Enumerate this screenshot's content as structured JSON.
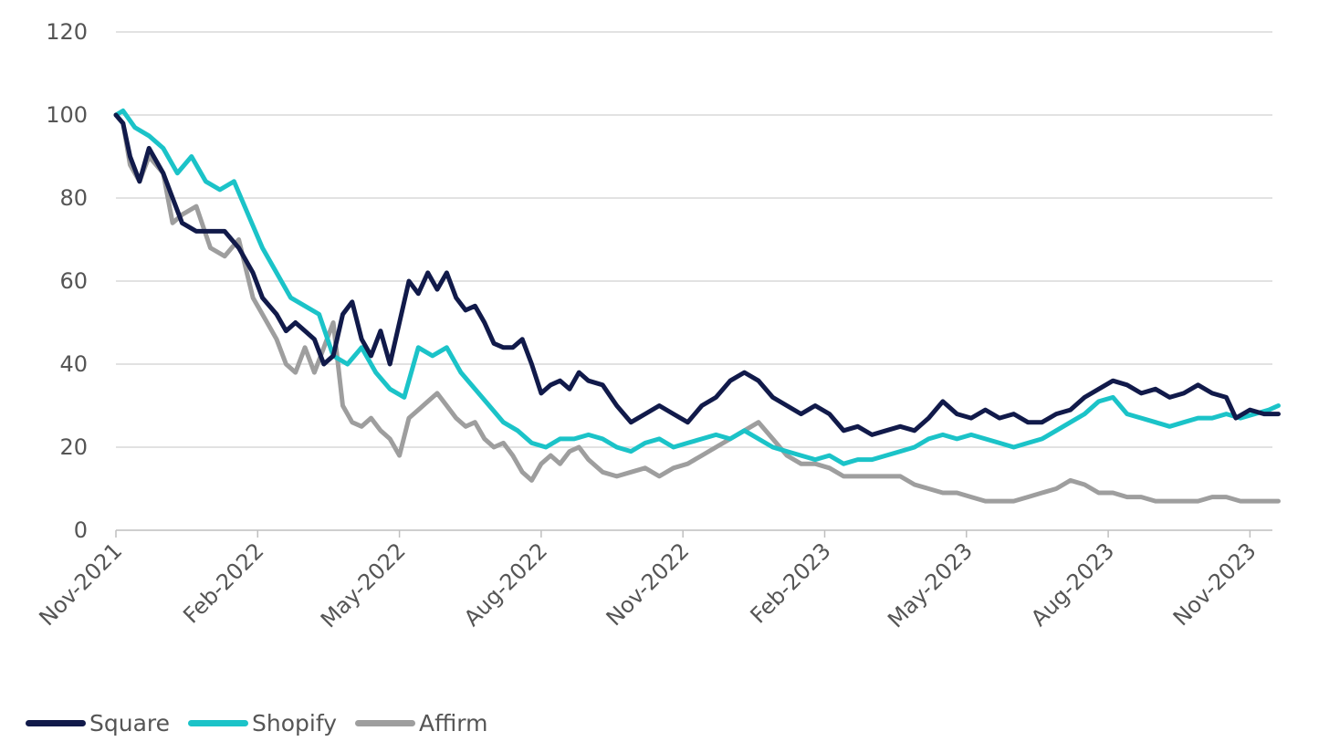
{
  "chart_data": {
    "type": "line",
    "title": "",
    "xlabel": "",
    "ylabel": "",
    "ylim": [
      0,
      120
    ],
    "yticks": [
      0,
      20,
      40,
      60,
      80,
      100,
      120
    ],
    "grid": true,
    "legend_position": "bottom-left",
    "x_tick_labels": [
      "Nov-2021",
      "Feb-2022",
      "May-2022",
      "Aug-2022",
      "Nov-2022",
      "Feb-2023",
      "May-2023",
      "Aug-2023",
      "Nov-2023"
    ],
    "x_domain_months": [
      0,
      24.6
    ],
    "series": [
      {
        "name": "Square",
        "color": "#111a4a",
        "points": [
          [
            0,
            100
          ],
          [
            0.15,
            98
          ],
          [
            0.3,
            90
          ],
          [
            0.5,
            84
          ],
          [
            0.7,
            92
          ],
          [
            1.0,
            86
          ],
          [
            1.2,
            80
          ],
          [
            1.4,
            74
          ],
          [
            1.7,
            72
          ],
          [
            2.0,
            72
          ],
          [
            2.3,
            72
          ],
          [
            2.6,
            68
          ],
          [
            2.9,
            62
          ],
          [
            3.1,
            56
          ],
          [
            3.4,
            52
          ],
          [
            3.6,
            48
          ],
          [
            3.8,
            50
          ],
          [
            4.0,
            48
          ],
          [
            4.2,
            46
          ],
          [
            4.4,
            40
          ],
          [
            4.6,
            42
          ],
          [
            4.8,
            52
          ],
          [
            5.0,
            55
          ],
          [
            5.2,
            46
          ],
          [
            5.4,
            42
          ],
          [
            5.6,
            48
          ],
          [
            5.8,
            40
          ],
          [
            6.0,
            50
          ],
          [
            6.2,
            60
          ],
          [
            6.4,
            57
          ],
          [
            6.6,
            62
          ],
          [
            6.8,
            58
          ],
          [
            7.0,
            62
          ],
          [
            7.2,
            56
          ],
          [
            7.4,
            53
          ],
          [
            7.6,
            54
          ],
          [
            7.8,
            50
          ],
          [
            8.0,
            45
          ],
          [
            8.2,
            44
          ],
          [
            8.4,
            44
          ],
          [
            8.6,
            46
          ],
          [
            8.8,
            40
          ],
          [
            9.0,
            33
          ],
          [
            9.2,
            35
          ],
          [
            9.4,
            36
          ],
          [
            9.6,
            34
          ],
          [
            9.8,
            38
          ],
          [
            10.0,
            36
          ],
          [
            10.3,
            35
          ],
          [
            10.6,
            30
          ],
          [
            10.9,
            26
          ],
          [
            11.2,
            28
          ],
          [
            11.5,
            30
          ],
          [
            11.8,
            28
          ],
          [
            12.1,
            26
          ],
          [
            12.4,
            30
          ],
          [
            12.7,
            32
          ],
          [
            13.0,
            36
          ],
          [
            13.3,
            38
          ],
          [
            13.6,
            36
          ],
          [
            13.9,
            32
          ],
          [
            14.2,
            30
          ],
          [
            14.5,
            28
          ],
          [
            14.8,
            30
          ],
          [
            15.1,
            28
          ],
          [
            15.4,
            24
          ],
          [
            15.7,
            25
          ],
          [
            16.0,
            23
          ],
          [
            16.3,
            24
          ],
          [
            16.6,
            25
          ],
          [
            16.9,
            24
          ],
          [
            17.2,
            27
          ],
          [
            17.5,
            31
          ],
          [
            17.8,
            28
          ],
          [
            18.1,
            27
          ],
          [
            18.4,
            29
          ],
          [
            18.7,
            27
          ],
          [
            19.0,
            28
          ],
          [
            19.3,
            26
          ],
          [
            19.6,
            26
          ],
          [
            19.9,
            28
          ],
          [
            20.2,
            29
          ],
          [
            20.5,
            32
          ],
          [
            20.8,
            34
          ],
          [
            21.1,
            36
          ],
          [
            21.4,
            35
          ],
          [
            21.7,
            33
          ],
          [
            22.0,
            34
          ],
          [
            22.3,
            32
          ],
          [
            22.6,
            33
          ],
          [
            22.9,
            35
          ],
          [
            23.2,
            33
          ],
          [
            23.5,
            32
          ],
          [
            23.7,
            27
          ],
          [
            24.0,
            29
          ],
          [
            24.3,
            28
          ],
          [
            24.6,
            28
          ]
        ]
      },
      {
        "name": "Shopify",
        "color": "#1bc3c8",
        "points": [
          [
            0,
            100
          ],
          [
            0.15,
            101
          ],
          [
            0.4,
            97
          ],
          [
            0.7,
            95
          ],
          [
            1.0,
            92
          ],
          [
            1.3,
            86
          ],
          [
            1.6,
            90
          ],
          [
            1.9,
            84
          ],
          [
            2.2,
            82
          ],
          [
            2.5,
            84
          ],
          [
            2.8,
            76
          ],
          [
            3.1,
            68
          ],
          [
            3.4,
            62
          ],
          [
            3.7,
            56
          ],
          [
            4.0,
            54
          ],
          [
            4.3,
            52
          ],
          [
            4.6,
            42
          ],
          [
            4.9,
            40
          ],
          [
            5.2,
            44
          ],
          [
            5.5,
            38
          ],
          [
            5.8,
            34
          ],
          [
            6.1,
            32
          ],
          [
            6.4,
            44
          ],
          [
            6.7,
            42
          ],
          [
            7.0,
            44
          ],
          [
            7.3,
            38
          ],
          [
            7.6,
            34
          ],
          [
            7.9,
            30
          ],
          [
            8.2,
            26
          ],
          [
            8.5,
            24
          ],
          [
            8.8,
            21
          ],
          [
            9.1,
            20
          ],
          [
            9.4,
            22
          ],
          [
            9.7,
            22
          ],
          [
            10.0,
            23
          ],
          [
            10.3,
            22
          ],
          [
            10.6,
            20
          ],
          [
            10.9,
            19
          ],
          [
            11.2,
            21
          ],
          [
            11.5,
            22
          ],
          [
            11.8,
            20
          ],
          [
            12.1,
            21
          ],
          [
            12.4,
            22
          ],
          [
            12.7,
            23
          ],
          [
            13.0,
            22
          ],
          [
            13.3,
            24
          ],
          [
            13.6,
            22
          ],
          [
            13.9,
            20
          ],
          [
            14.2,
            19
          ],
          [
            14.5,
            18
          ],
          [
            14.8,
            17
          ],
          [
            15.1,
            18
          ],
          [
            15.4,
            16
          ],
          [
            15.7,
            17
          ],
          [
            16.0,
            17
          ],
          [
            16.3,
            18
          ],
          [
            16.6,
            19
          ],
          [
            16.9,
            20
          ],
          [
            17.2,
            22
          ],
          [
            17.5,
            23
          ],
          [
            17.8,
            22
          ],
          [
            18.1,
            23
          ],
          [
            18.4,
            22
          ],
          [
            18.7,
            21
          ],
          [
            19.0,
            20
          ],
          [
            19.3,
            21
          ],
          [
            19.6,
            22
          ],
          [
            19.9,
            24
          ],
          [
            20.2,
            26
          ],
          [
            20.5,
            28
          ],
          [
            20.8,
            31
          ],
          [
            21.1,
            32
          ],
          [
            21.4,
            28
          ],
          [
            21.7,
            27
          ],
          [
            22.0,
            26
          ],
          [
            22.3,
            25
          ],
          [
            22.6,
            26
          ],
          [
            22.9,
            27
          ],
          [
            23.2,
            27
          ],
          [
            23.5,
            28
          ],
          [
            23.8,
            27
          ],
          [
            24.1,
            28
          ],
          [
            24.4,
            29
          ],
          [
            24.6,
            30
          ]
        ]
      },
      {
        "name": "Affirm",
        "color": "#9e9e9e",
        "points": [
          [
            0,
            100
          ],
          [
            0.15,
            98
          ],
          [
            0.3,
            88
          ],
          [
            0.5,
            84
          ],
          [
            0.7,
            90
          ],
          [
            1.0,
            86
          ],
          [
            1.2,
            74
          ],
          [
            1.4,
            76
          ],
          [
            1.7,
            78
          ],
          [
            2.0,
            68
          ],
          [
            2.3,
            66
          ],
          [
            2.6,
            70
          ],
          [
            2.9,
            56
          ],
          [
            3.1,
            52
          ],
          [
            3.4,
            46
          ],
          [
            3.6,
            40
          ],
          [
            3.8,
            38
          ],
          [
            4.0,
            44
          ],
          [
            4.2,
            38
          ],
          [
            4.4,
            44
          ],
          [
            4.6,
            50
          ],
          [
            4.8,
            30
          ],
          [
            5.0,
            26
          ],
          [
            5.2,
            25
          ],
          [
            5.4,
            27
          ],
          [
            5.6,
            24
          ],
          [
            5.8,
            22
          ],
          [
            6.0,
            18
          ],
          [
            6.2,
            27
          ],
          [
            6.4,
            29
          ],
          [
            6.6,
            31
          ],
          [
            6.8,
            33
          ],
          [
            7.0,
            30
          ],
          [
            7.2,
            27
          ],
          [
            7.4,
            25
          ],
          [
            7.6,
            26
          ],
          [
            7.8,
            22
          ],
          [
            8.0,
            20
          ],
          [
            8.2,
            21
          ],
          [
            8.4,
            18
          ],
          [
            8.6,
            14
          ],
          [
            8.8,
            12
          ],
          [
            9.0,
            16
          ],
          [
            9.2,
            18
          ],
          [
            9.4,
            16
          ],
          [
            9.6,
            19
          ],
          [
            9.8,
            20
          ],
          [
            10.0,
            17
          ],
          [
            10.3,
            14
          ],
          [
            10.6,
            13
          ],
          [
            10.9,
            14
          ],
          [
            11.2,
            15
          ],
          [
            11.5,
            13
          ],
          [
            11.8,
            15
          ],
          [
            12.1,
            16
          ],
          [
            12.4,
            18
          ],
          [
            12.7,
            20
          ],
          [
            13.0,
            22
          ],
          [
            13.3,
            24
          ],
          [
            13.6,
            26
          ],
          [
            13.9,
            22
          ],
          [
            14.2,
            18
          ],
          [
            14.5,
            16
          ],
          [
            14.8,
            16
          ],
          [
            15.1,
            15
          ],
          [
            15.4,
            13
          ],
          [
            15.7,
            13
          ],
          [
            16.0,
            13
          ],
          [
            16.3,
            13
          ],
          [
            16.6,
            13
          ],
          [
            16.9,
            11
          ],
          [
            17.2,
            10
          ],
          [
            17.5,
            9
          ],
          [
            17.8,
            9
          ],
          [
            18.1,
            8
          ],
          [
            18.4,
            7
          ],
          [
            18.7,
            7
          ],
          [
            19.0,
            7
          ],
          [
            19.3,
            8
          ],
          [
            19.6,
            9
          ],
          [
            19.9,
            10
          ],
          [
            20.2,
            12
          ],
          [
            20.5,
            11
          ],
          [
            20.8,
            9
          ],
          [
            21.1,
            9
          ],
          [
            21.4,
            8
          ],
          [
            21.7,
            8
          ],
          [
            22.0,
            7
          ],
          [
            22.3,
            7
          ],
          [
            22.6,
            7
          ],
          [
            22.9,
            7
          ],
          [
            23.2,
            8
          ],
          [
            23.5,
            8
          ],
          [
            23.8,
            7
          ],
          [
            24.1,
            7
          ],
          [
            24.4,
            7
          ],
          [
            24.6,
            7
          ]
        ]
      }
    ]
  }
}
